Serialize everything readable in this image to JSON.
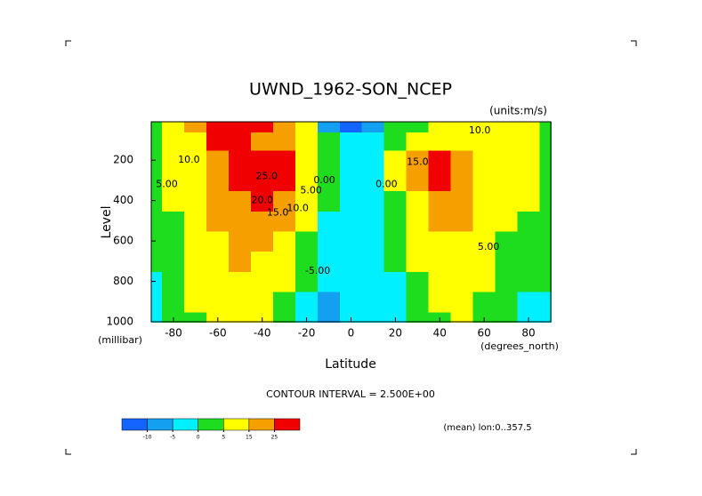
{
  "chart_data": {
    "type": "contour",
    "title": "UWND_1962-SON_NCEP",
    "subtitle": "(units:m/s)",
    "y_label": "Level",
    "y_units": "(millibar)",
    "x_label": "Latitude",
    "x_units": "(degrees_north)",
    "footer": "CONTOUR INTERVAL = 2.500E+00",
    "note": "(mean) lon:0..357.5",
    "x": [
      -90,
      -80,
      -70,
      -60,
      -50,
      -40,
      -30,
      -20,
      -10,
      0,
      10,
      20,
      30,
      40,
      50,
      60,
      70,
      80,
      90
    ],
    "y": [
      1000,
      900,
      800,
      700,
      600,
      500,
      400,
      300,
      200,
      100,
      20
    ],
    "z": [
      [
        -3,
        2,
        4,
        6,
        8,
        6,
        2,
        -3,
        -6,
        -4,
        -3,
        -2,
        1,
        4,
        6,
        3,
        0,
        -2,
        -2
      ],
      [
        -2,
        3,
        5,
        8,
        10,
        8,
        4,
        -2,
        -6,
        -5,
        -3,
        -2,
        2,
        6,
        8,
        4,
        1,
        -1,
        -1
      ],
      [
        -1,
        3,
        5,
        9,
        12,
        11,
        6,
        0,
        -5,
        -5,
        -3,
        -1,
        4,
        8,
        10,
        6,
        2,
        1,
        0
      ],
      [
        0,
        3,
        6,
        11,
        15,
        14,
        9,
        2,
        -4,
        -4,
        -3,
        0,
        6,
        11,
        12,
        7,
        3,
        2,
        1
      ],
      [
        1,
        4,
        7,
        13,
        18,
        17,
        12,
        4,
        -2,
        -3,
        -2,
        1,
        8,
        14,
        14,
        8,
        4,
        3,
        2
      ],
      [
        2,
        4,
        8,
        15,
        21,
        21,
        16,
        6,
        -1,
        -3,
        -2,
        2,
        11,
        17,
        16,
        9,
        5,
        4,
        3
      ],
      [
        2,
        5,
        9,
        17,
        24,
        25,
        21,
        9,
        0,
        -3,
        -2,
        3,
        14,
        22,
        18,
        10,
        6,
        5,
        4
      ],
      [
        3,
        5,
        10,
        19,
        26,
        28,
        27,
        12,
        1,
        -3,
        -2,
        5,
        18,
        26,
        20,
        11,
        7,
        6,
        4
      ],
      [
        3,
        5,
        11,
        21,
        28,
        30,
        30,
        14,
        2,
        -4,
        -2,
        6,
        20,
        28,
        20,
        11,
        7,
        6,
        4
      ],
      [
        3,
        6,
        14,
        26,
        28,
        24,
        17,
        8,
        0,
        -5,
        -3,
        2,
        10,
        14,
        12,
        10,
        8,
        6,
        4
      ],
      [
        4,
        8,
        18,
        30,
        30,
        25,
        15,
        5,
        -8,
        -12,
        -8,
        0,
        4,
        6,
        8,
        10,
        9,
        6,
        4
      ]
    ],
    "levels": [
      -10,
      -5,
      0,
      5,
      15,
      25
    ],
    "colors": [
      "#1464ff",
      "#14a0f0",
      "#00f0ff",
      "#1edc1e",
      "#ffff00",
      "#f5a000",
      "#f00000"
    ],
    "xlim": [
      -90,
      90
    ],
    "ylim": [
      1000,
      10
    ],
    "xticks": [
      -80,
      -60,
      -40,
      -20,
      0,
      20,
      40,
      60,
      80
    ],
    "yticks": [
      200,
      400,
      600,
      800,
      1000
    ],
    "annotations": [
      {
        "text": "10.0",
        "x": -73,
        "y": 200
      },
      {
        "text": "5.00",
        "x": -83,
        "y": 320
      },
      {
        "text": "25.0",
        "x": -38,
        "y": 280
      },
      {
        "text": "20.0",
        "x": -40,
        "y": 400
      },
      {
        "text": "15.0",
        "x": -33,
        "y": 460
      },
      {
        "text": "10.0",
        "x": -24,
        "y": 440
      },
      {
        "text": "5.00",
        "x": -18,
        "y": 350
      },
      {
        "text": "0.00",
        "x": -12,
        "y": 300
      },
      {
        "text": "-5.00",
        "x": -15,
        "y": 750
      },
      {
        "text": "0.00",
        "x": 16,
        "y": 320
      },
      {
        "text": "10.0",
        "x": 58,
        "y": 55
      },
      {
        "text": "15.0",
        "x": 30,
        "y": 210
      },
      {
        "text": "5.00",
        "x": 62,
        "y": 630
      }
    ]
  }
}
